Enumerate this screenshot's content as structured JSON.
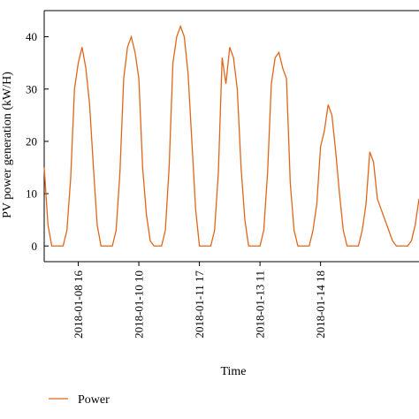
{
  "chart_data": {
    "type": "line",
    "title": "",
    "xlabel": "Time",
    "ylabel": "PV power generation (kW/H)",
    "ylim": [
      -3,
      45
    ],
    "yticks": [
      0,
      10,
      20,
      30,
      40
    ],
    "x_tick_labels": [
      "2018-01-08 16",
      "2018-01-10 10",
      "2018-01-11 17",
      "2018-01-13 11",
      "2018-01-14 18"
    ],
    "x_tick_index": [
      9,
      25,
      41,
      57,
      73
    ],
    "grid": false,
    "legend": "bottom-left",
    "colors": {
      "series": "#E0661A",
      "axis": "#000000"
    },
    "series": [
      {
        "name": "Power",
        "values": [
          15,
          4,
          0,
          0,
          0,
          0,
          3,
          13,
          30,
          35,
          38,
          34,
          27,
          15,
          4,
          0,
          0,
          0,
          0,
          3,
          14,
          32,
          38,
          40,
          37,
          32,
          15,
          6,
          1,
          0,
          0,
          0,
          3,
          15,
          35,
          40,
          42,
          40,
          33,
          20,
          7,
          0,
          0,
          0,
          0,
          3,
          14,
          36,
          31,
          38,
          36,
          30,
          15,
          5,
          0,
          0,
          0,
          0,
          3,
          14,
          31,
          36,
          37,
          34,
          32,
          12,
          3,
          0,
          0,
          0,
          0,
          3,
          8,
          19,
          22,
          27,
          25,
          18,
          10,
          3,
          0,
          0,
          0,
          0,
          3,
          8,
          18,
          16,
          9,
          7,
          5,
          3,
          1,
          0,
          0,
          0,
          0,
          1,
          4,
          9
        ]
      }
    ]
  }
}
